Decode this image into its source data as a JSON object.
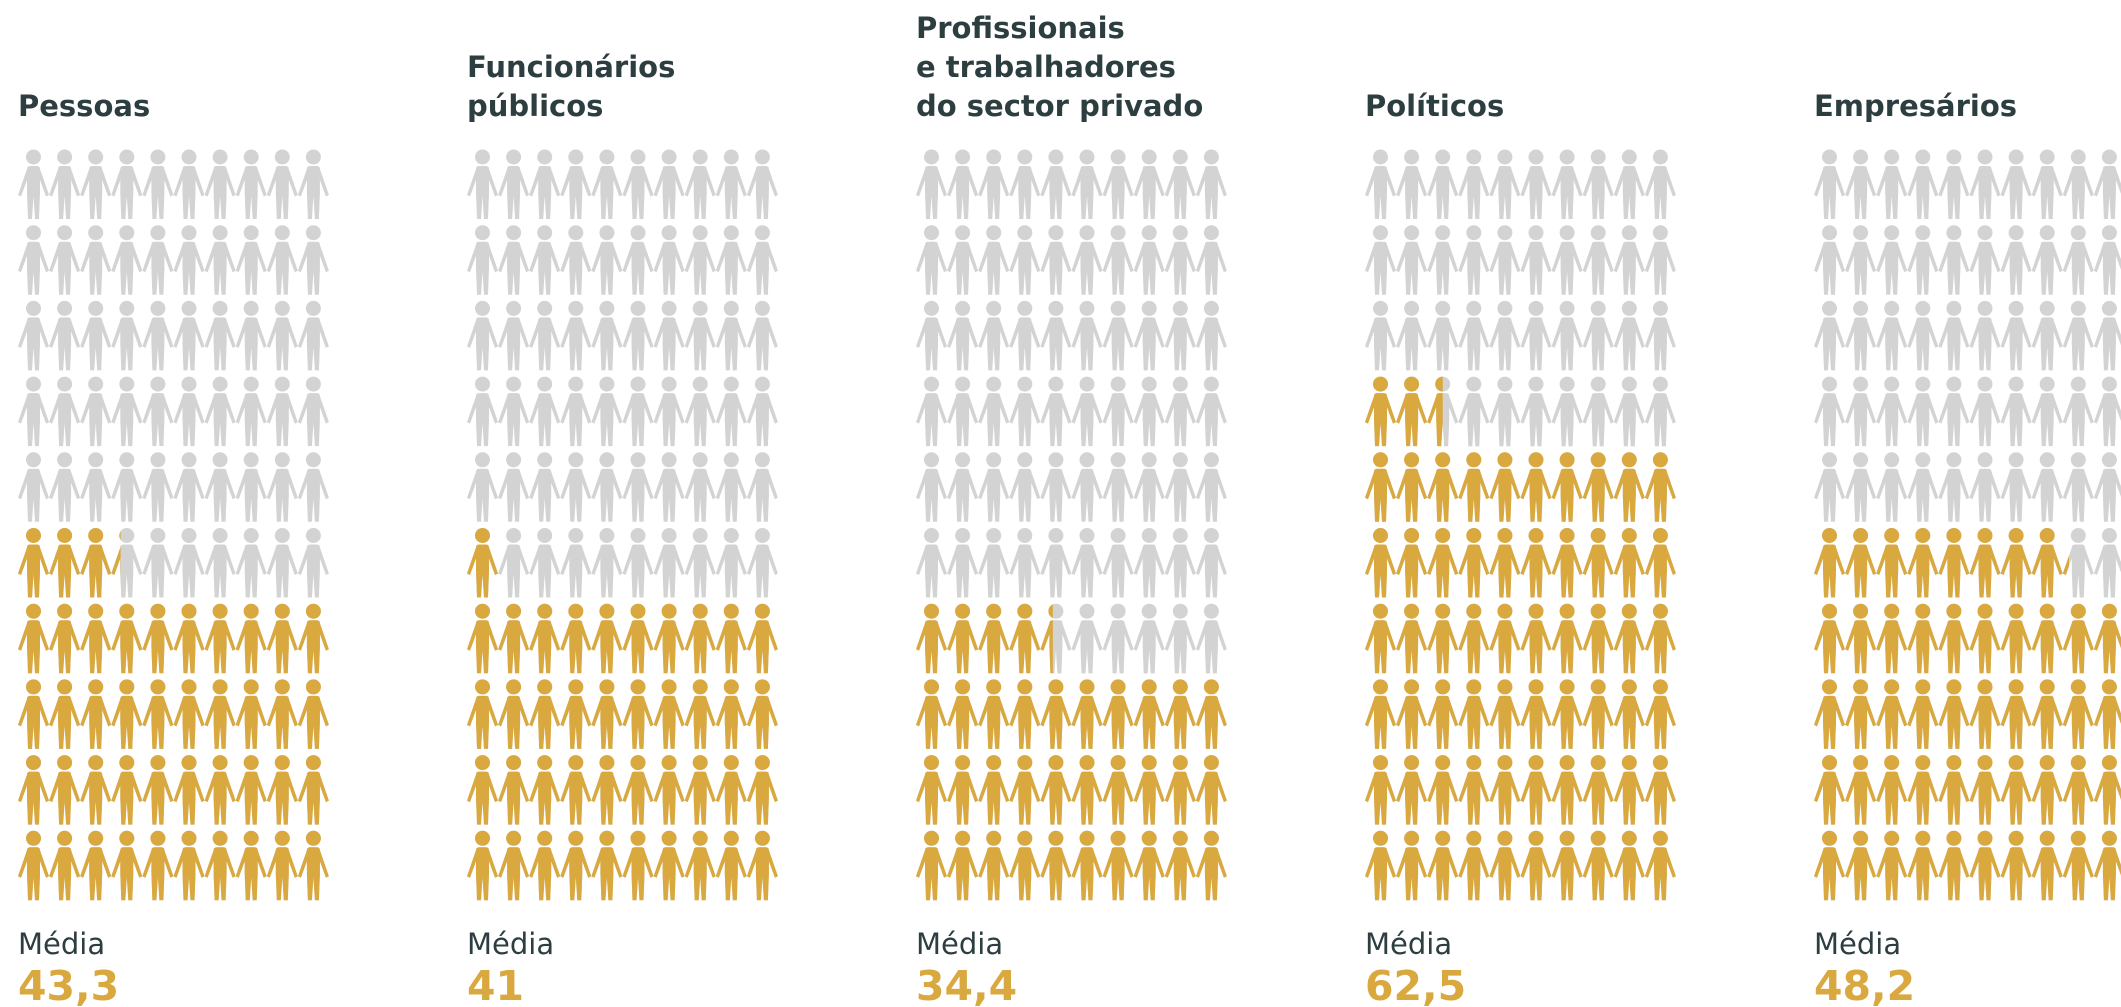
{
  "chart_data": [
    {
      "type": "pictogram",
      "title": [
        "Pessoas"
      ],
      "label": "Média",
      "values": [
        43.3
      ],
      "value_labels": [
        "43,3"
      ],
      "color": "#d9a83f",
      "background_color": "#d3d3d3"
    },
    {
      "type": "pictogram",
      "title": [
        "Funcionários",
        "públicos"
      ],
      "label": "Média",
      "values": [
        41
      ],
      "value_labels": [
        "41"
      ],
      "color": "#d9a83f",
      "background_color": "#d3d3d3"
    },
    {
      "type": "pictogram",
      "title": [
        "Profissionais",
        "e trabalhadores",
        "do sector privado"
      ],
      "label": "Média",
      "values": [
        34.4
      ],
      "value_labels": [
        "34,4"
      ],
      "color": "#d9a83f",
      "background_color": "#d3d3d3"
    },
    {
      "type": "pictogram",
      "title": [
        "Políticos"
      ],
      "label": "Média",
      "values": [
        62.5
      ],
      "value_labels": [
        "62,5"
      ],
      "color": "#d9a83f",
      "background_color": "#d3d3d3"
    },
    {
      "type": "pictogram",
      "title": [
        "Empresários"
      ],
      "label": "Média",
      "values": [
        48.2
      ],
      "value_labels": [
        "48,2"
      ],
      "color": "#d9a83f",
      "background_color": "#d3d3d3"
    }
  ]
}
